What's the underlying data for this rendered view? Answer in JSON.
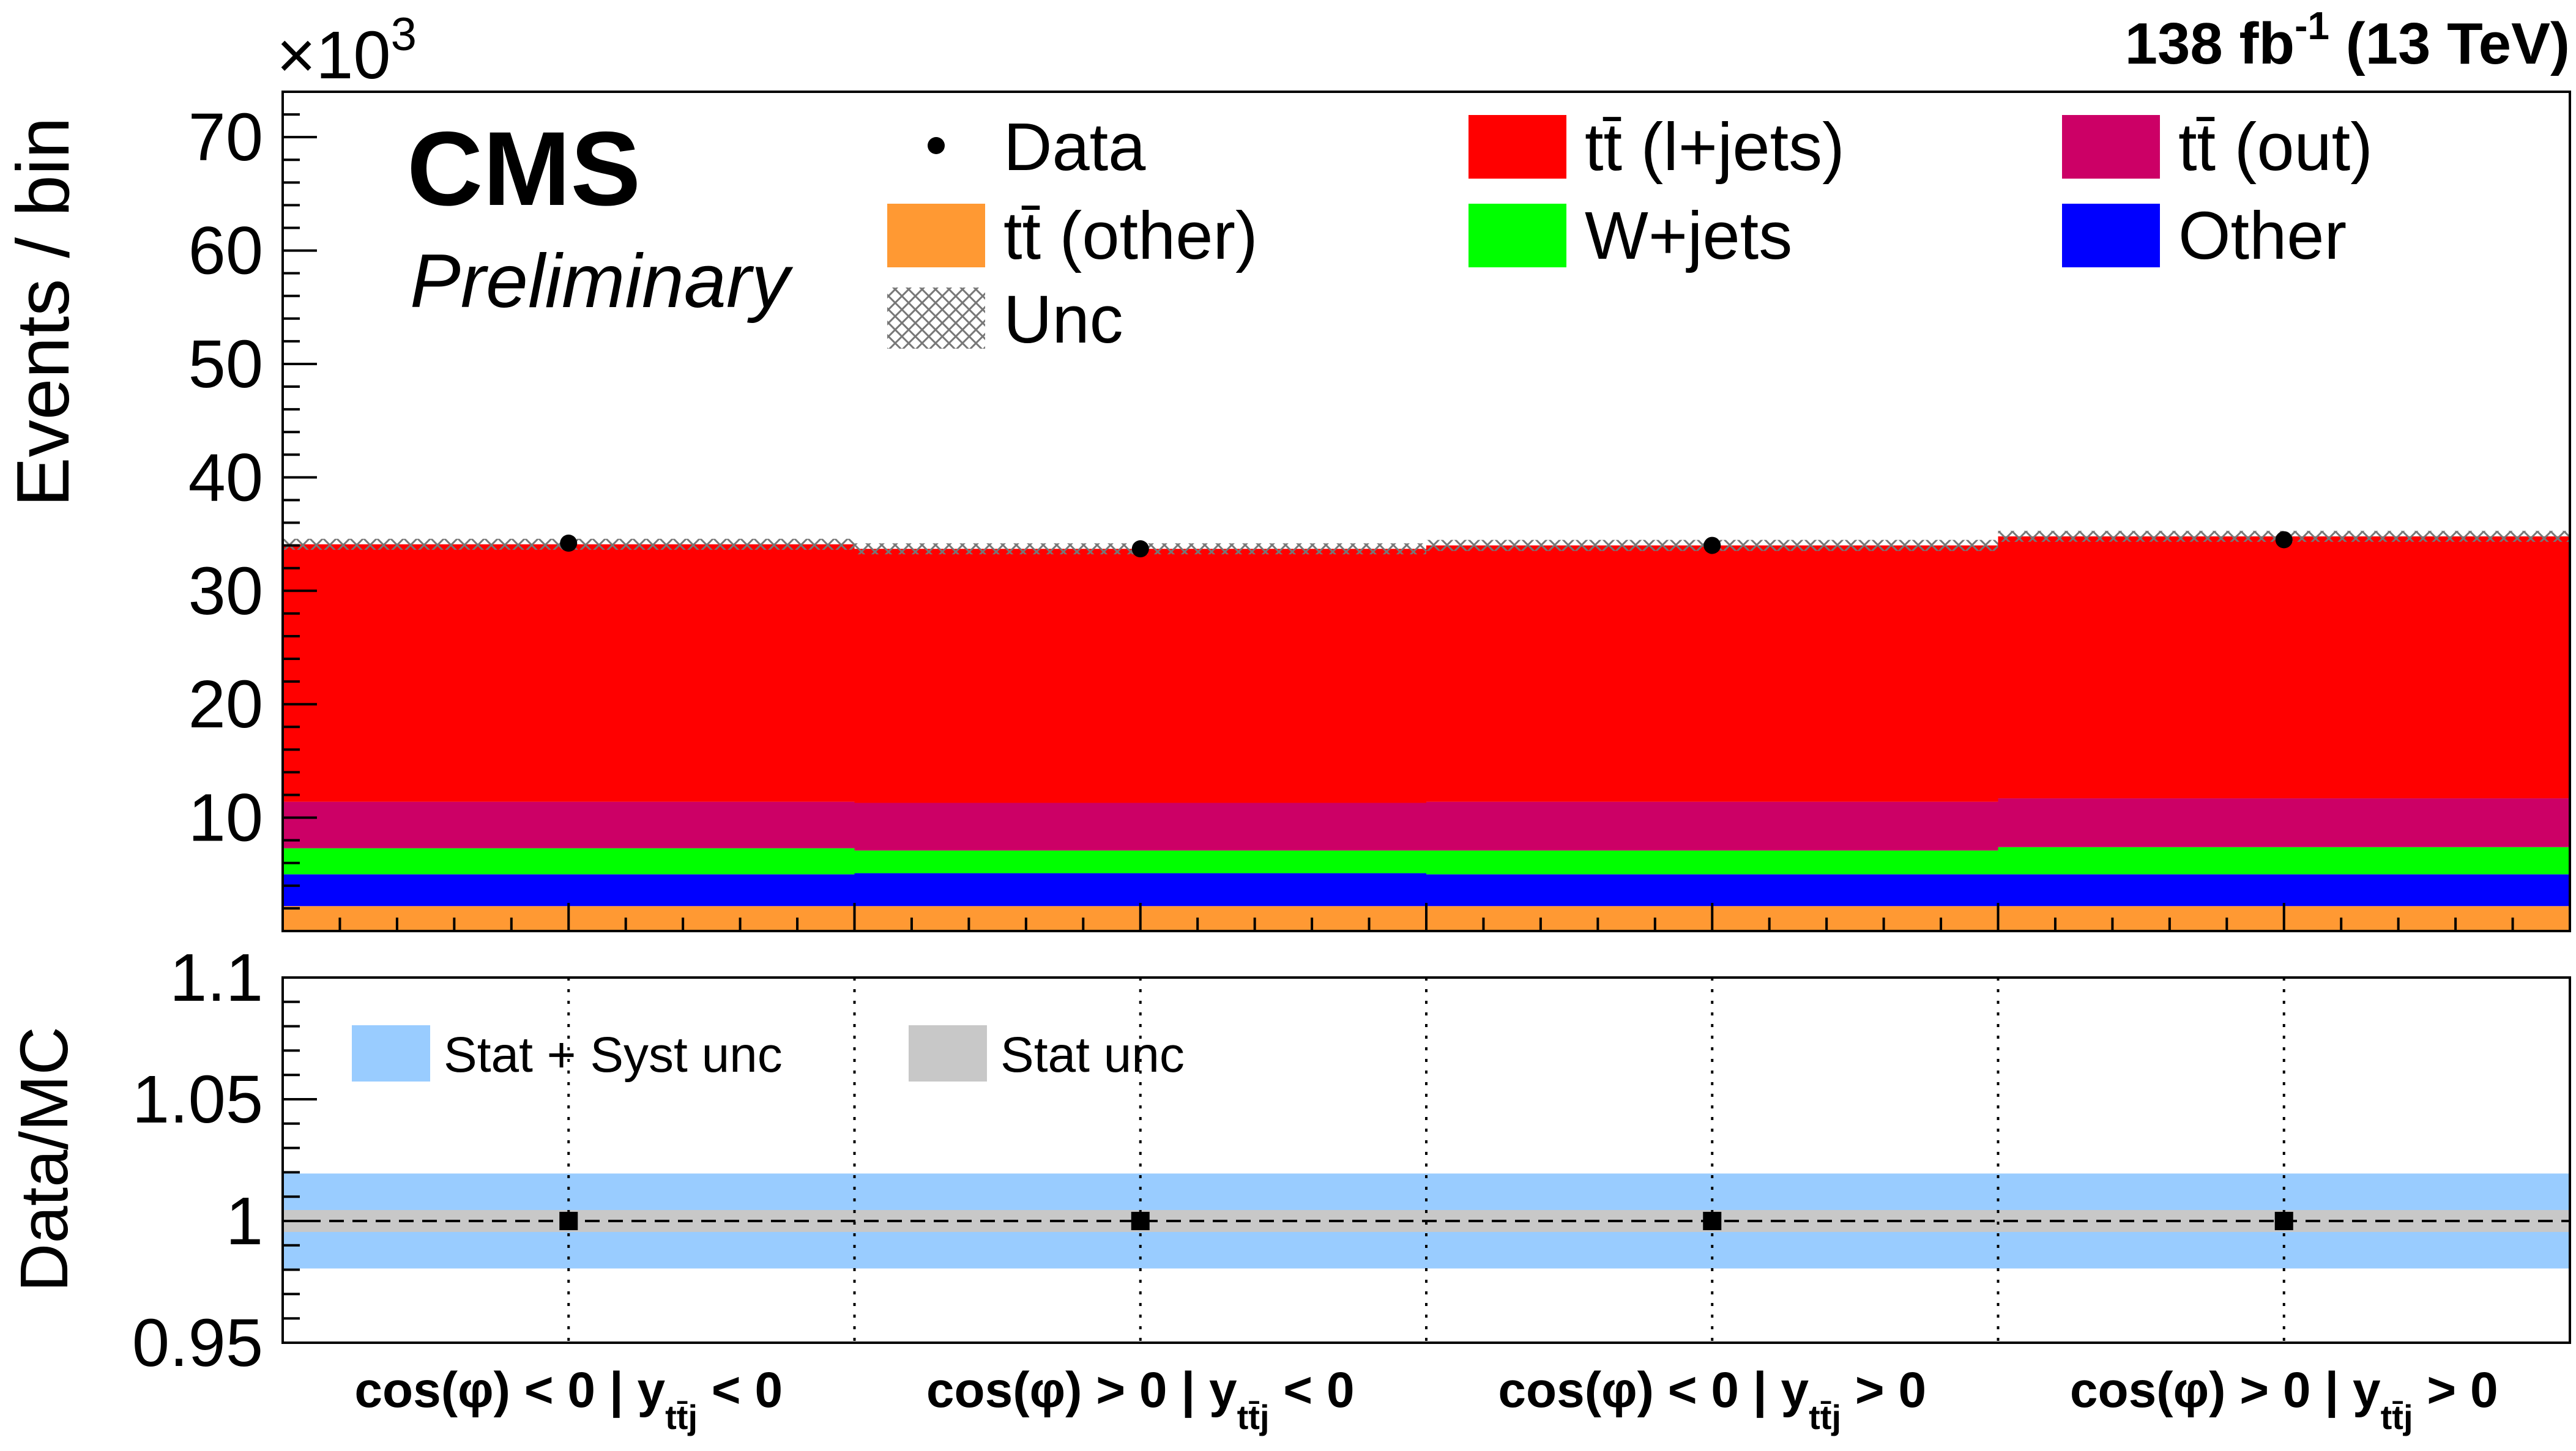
{
  "chart_data": [
    {
      "type": "bar",
      "stacked": true,
      "title": "",
      "experiment": "CMS",
      "status": "Preliminary",
      "lumi": {
        "prefix": "138 fb",
        "exponent": "-1",
        "suffix": " (13 TeV)"
      },
      "ylabel": "Events / bin",
      "multiplier": {
        "base": "×10",
        "exponent": "3"
      },
      "ylim": [
        0,
        74000
      ],
      "yticks": [
        10000,
        20000,
        30000,
        40000,
        50000,
        60000,
        70000
      ],
      "yticklabels": [
        "10",
        "20",
        "30",
        "40",
        "50",
        "60",
        "70"
      ],
      "categories": [
        {
          "main": "cos(φ) < 0 | y",
          "sub": "tt̄j",
          "tail": " < 0"
        },
        {
          "main": "cos(φ) > 0 | y",
          "sub": "tt̄j",
          "tail": " < 0"
        },
        {
          "main": "cos(φ) < 0 | y",
          "sub": "tt̄j",
          "tail": " > 0"
        },
        {
          "main": "cos(φ) > 0 | y",
          "sub": "tt̄j",
          "tail": " > 0"
        }
      ],
      "series": [
        {
          "name": "tt̄ (other)",
          "color": "#ff9933",
          "values": [
            2200,
            2200,
            2200,
            2200
          ]
        },
        {
          "name": "Other",
          "color": "#0000ff",
          "values": [
            2800,
            2900,
            2800,
            2800
          ]
        },
        {
          "name": "W+jets",
          "color": "#00ff00",
          "values": [
            2300,
            2000,
            2100,
            2400
          ]
        },
        {
          "name": "tt̄ (out)",
          "color": "#cc0066",
          "values": [
            4100,
            4200,
            4300,
            4300
          ]
        },
        {
          "name": "tt̄ (l+jets)",
          "color": "#ff0000",
          "values": [
            22700,
            22400,
            22600,
            23100
          ]
        }
      ],
      "data": {
        "name": "Data",
        "values": [
          34200,
          33700,
          34000,
          34500
        ]
      },
      "uncertainty": {
        "name": "Unc",
        "color": "#777777"
      },
      "legend": {
        "placement": "top",
        "entries": [
          {
            "label": "Data",
            "kind": "marker",
            "color": "#000000"
          },
          {
            "label": "tt̄ (l+jets)",
            "kind": "fill",
            "color": "#ff0000"
          },
          {
            "label": "tt̄ (out)",
            "kind": "fill",
            "color": "#cc0066"
          },
          {
            "label": "tt̄ (other)",
            "kind": "fill",
            "color": "#ff9933"
          },
          {
            "label": "W+jets",
            "kind": "fill",
            "color": "#00ff00"
          },
          {
            "label": "Other",
            "kind": "fill",
            "color": "#0000ff"
          },
          {
            "label": "Unc",
            "kind": "hatch",
            "color": "#777777"
          }
        ]
      }
    },
    {
      "type": "scatter",
      "title": "",
      "ylabel": "Data/MC",
      "ylim": [
        0.95,
        1.1
      ],
      "yticks": [
        0.95,
        1,
        1.05,
        1.1
      ],
      "yticklabels": [
        "0.95",
        "1",
        "1.05",
        "1.1"
      ],
      "ratio": [
        1.0,
        1.0,
        1.0,
        1.0
      ],
      "reference_line": 1,
      "bands": [
        {
          "name": "Stat + Syst unc",
          "color": "#99ccff",
          "low": 0.9805,
          "high": 1.0195
        },
        {
          "name": "Stat unc",
          "color": "#c8c8c8",
          "low": 0.9955,
          "high": 1.0045
        }
      ]
    }
  ]
}
